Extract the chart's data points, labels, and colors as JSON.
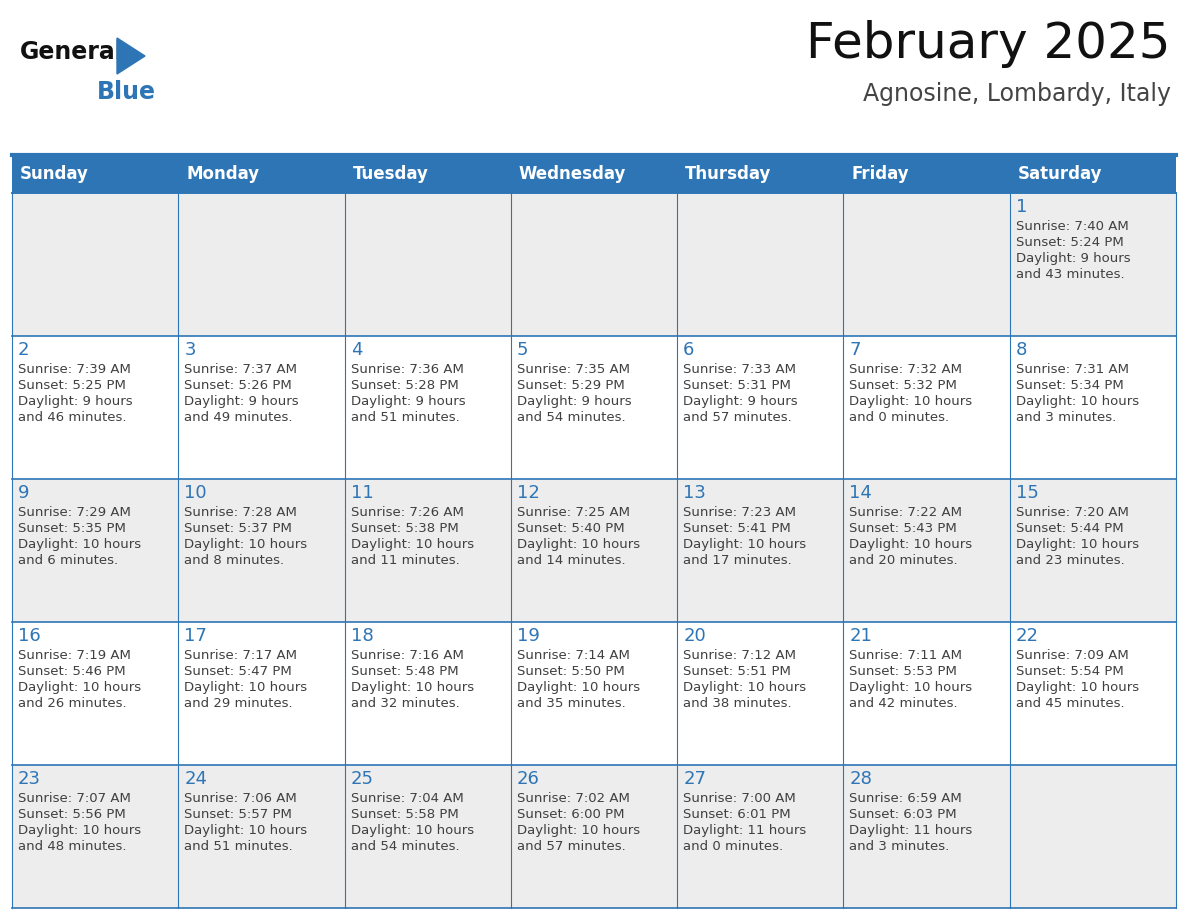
{
  "title": "February 2025",
  "subtitle": "Agnosine, Lombardy, Italy",
  "header_bg": "#2E75B6",
  "header_text_color": "#FFFFFF",
  "cell_bg_even": "#FFFFFF",
  "cell_bg_odd": "#EDEDED",
  "day_headers": [
    "Sunday",
    "Monday",
    "Tuesday",
    "Wednesday",
    "Thursday",
    "Friday",
    "Saturday"
  ],
  "days_data": [
    {
      "day": 1,
      "col": 6,
      "row": 0,
      "sunrise": "7:40 AM",
      "sunset": "5:24 PM",
      "daylight_line1": "Daylight: 9 hours",
      "daylight_line2": "and 43 minutes."
    },
    {
      "day": 2,
      "col": 0,
      "row": 1,
      "sunrise": "7:39 AM",
      "sunset": "5:25 PM",
      "daylight_line1": "Daylight: 9 hours",
      "daylight_line2": "and 46 minutes."
    },
    {
      "day": 3,
      "col": 1,
      "row": 1,
      "sunrise": "7:37 AM",
      "sunset": "5:26 PM",
      "daylight_line1": "Daylight: 9 hours",
      "daylight_line2": "and 49 minutes."
    },
    {
      "day": 4,
      "col": 2,
      "row": 1,
      "sunrise": "7:36 AM",
      "sunset": "5:28 PM",
      "daylight_line1": "Daylight: 9 hours",
      "daylight_line2": "and 51 minutes."
    },
    {
      "day": 5,
      "col": 3,
      "row": 1,
      "sunrise": "7:35 AM",
      "sunset": "5:29 PM",
      "daylight_line1": "Daylight: 9 hours",
      "daylight_line2": "and 54 minutes."
    },
    {
      "day": 6,
      "col": 4,
      "row": 1,
      "sunrise": "7:33 AM",
      "sunset": "5:31 PM",
      "daylight_line1": "Daylight: 9 hours",
      "daylight_line2": "and 57 minutes."
    },
    {
      "day": 7,
      "col": 5,
      "row": 1,
      "sunrise": "7:32 AM",
      "sunset": "5:32 PM",
      "daylight_line1": "Daylight: 10 hours",
      "daylight_line2": "and 0 minutes."
    },
    {
      "day": 8,
      "col": 6,
      "row": 1,
      "sunrise": "7:31 AM",
      "sunset": "5:34 PM",
      "daylight_line1": "Daylight: 10 hours",
      "daylight_line2": "and 3 minutes."
    },
    {
      "day": 9,
      "col": 0,
      "row": 2,
      "sunrise": "7:29 AM",
      "sunset": "5:35 PM",
      "daylight_line1": "Daylight: 10 hours",
      "daylight_line2": "and 6 minutes."
    },
    {
      "day": 10,
      "col": 1,
      "row": 2,
      "sunrise": "7:28 AM",
      "sunset": "5:37 PM",
      "daylight_line1": "Daylight: 10 hours",
      "daylight_line2": "and 8 minutes."
    },
    {
      "day": 11,
      "col": 2,
      "row": 2,
      "sunrise": "7:26 AM",
      "sunset": "5:38 PM",
      "daylight_line1": "Daylight: 10 hours",
      "daylight_line2": "and 11 minutes."
    },
    {
      "day": 12,
      "col": 3,
      "row": 2,
      "sunrise": "7:25 AM",
      "sunset": "5:40 PM",
      "daylight_line1": "Daylight: 10 hours",
      "daylight_line2": "and 14 minutes."
    },
    {
      "day": 13,
      "col": 4,
      "row": 2,
      "sunrise": "7:23 AM",
      "sunset": "5:41 PM",
      "daylight_line1": "Daylight: 10 hours",
      "daylight_line2": "and 17 minutes."
    },
    {
      "day": 14,
      "col": 5,
      "row": 2,
      "sunrise": "7:22 AM",
      "sunset": "5:43 PM",
      "daylight_line1": "Daylight: 10 hours",
      "daylight_line2": "and 20 minutes."
    },
    {
      "day": 15,
      "col": 6,
      "row": 2,
      "sunrise": "7:20 AM",
      "sunset": "5:44 PM",
      "daylight_line1": "Daylight: 10 hours",
      "daylight_line2": "and 23 minutes."
    },
    {
      "day": 16,
      "col": 0,
      "row": 3,
      "sunrise": "7:19 AM",
      "sunset": "5:46 PM",
      "daylight_line1": "Daylight: 10 hours",
      "daylight_line2": "and 26 minutes."
    },
    {
      "day": 17,
      "col": 1,
      "row": 3,
      "sunrise": "7:17 AM",
      "sunset": "5:47 PM",
      "daylight_line1": "Daylight: 10 hours",
      "daylight_line2": "and 29 minutes."
    },
    {
      "day": 18,
      "col": 2,
      "row": 3,
      "sunrise": "7:16 AM",
      "sunset": "5:48 PM",
      "daylight_line1": "Daylight: 10 hours",
      "daylight_line2": "and 32 minutes."
    },
    {
      "day": 19,
      "col": 3,
      "row": 3,
      "sunrise": "7:14 AM",
      "sunset": "5:50 PM",
      "daylight_line1": "Daylight: 10 hours",
      "daylight_line2": "and 35 minutes."
    },
    {
      "day": 20,
      "col": 4,
      "row": 3,
      "sunrise": "7:12 AM",
      "sunset": "5:51 PM",
      "daylight_line1": "Daylight: 10 hours",
      "daylight_line2": "and 38 minutes."
    },
    {
      "day": 21,
      "col": 5,
      "row": 3,
      "sunrise": "7:11 AM",
      "sunset": "5:53 PM",
      "daylight_line1": "Daylight: 10 hours",
      "daylight_line2": "and 42 minutes."
    },
    {
      "day": 22,
      "col": 6,
      "row": 3,
      "sunrise": "7:09 AM",
      "sunset": "5:54 PM",
      "daylight_line1": "Daylight: 10 hours",
      "daylight_line2": "and 45 minutes."
    },
    {
      "day": 23,
      "col": 0,
      "row": 4,
      "sunrise": "7:07 AM",
      "sunset": "5:56 PM",
      "daylight_line1": "Daylight: 10 hours",
      "daylight_line2": "and 48 minutes."
    },
    {
      "day": 24,
      "col": 1,
      "row": 4,
      "sunrise": "7:06 AM",
      "sunset": "5:57 PM",
      "daylight_line1": "Daylight: 10 hours",
      "daylight_line2": "and 51 minutes."
    },
    {
      "day": 25,
      "col": 2,
      "row": 4,
      "sunrise": "7:04 AM",
      "sunset": "5:58 PM",
      "daylight_line1": "Daylight: 10 hours",
      "daylight_line2": "and 54 minutes."
    },
    {
      "day": 26,
      "col": 3,
      "row": 4,
      "sunrise": "7:02 AM",
      "sunset": "6:00 PM",
      "daylight_line1": "Daylight: 10 hours",
      "daylight_line2": "and 57 minutes."
    },
    {
      "day": 27,
      "col": 4,
      "row": 4,
      "sunrise": "7:00 AM",
      "sunset": "6:01 PM",
      "daylight_line1": "Daylight: 11 hours",
      "daylight_line2": "and 0 minutes."
    },
    {
      "day": 28,
      "col": 5,
      "row": 4,
      "sunrise": "6:59 AM",
      "sunset": "6:03 PM",
      "daylight_line1": "Daylight: 11 hours",
      "daylight_line2": "and 3 minutes."
    }
  ],
  "num_rows": 5,
  "num_cols": 7,
  "border_color": "#2E75B6",
  "cell_number_color": "#2E75B6",
  "cell_text_color": "#404040"
}
